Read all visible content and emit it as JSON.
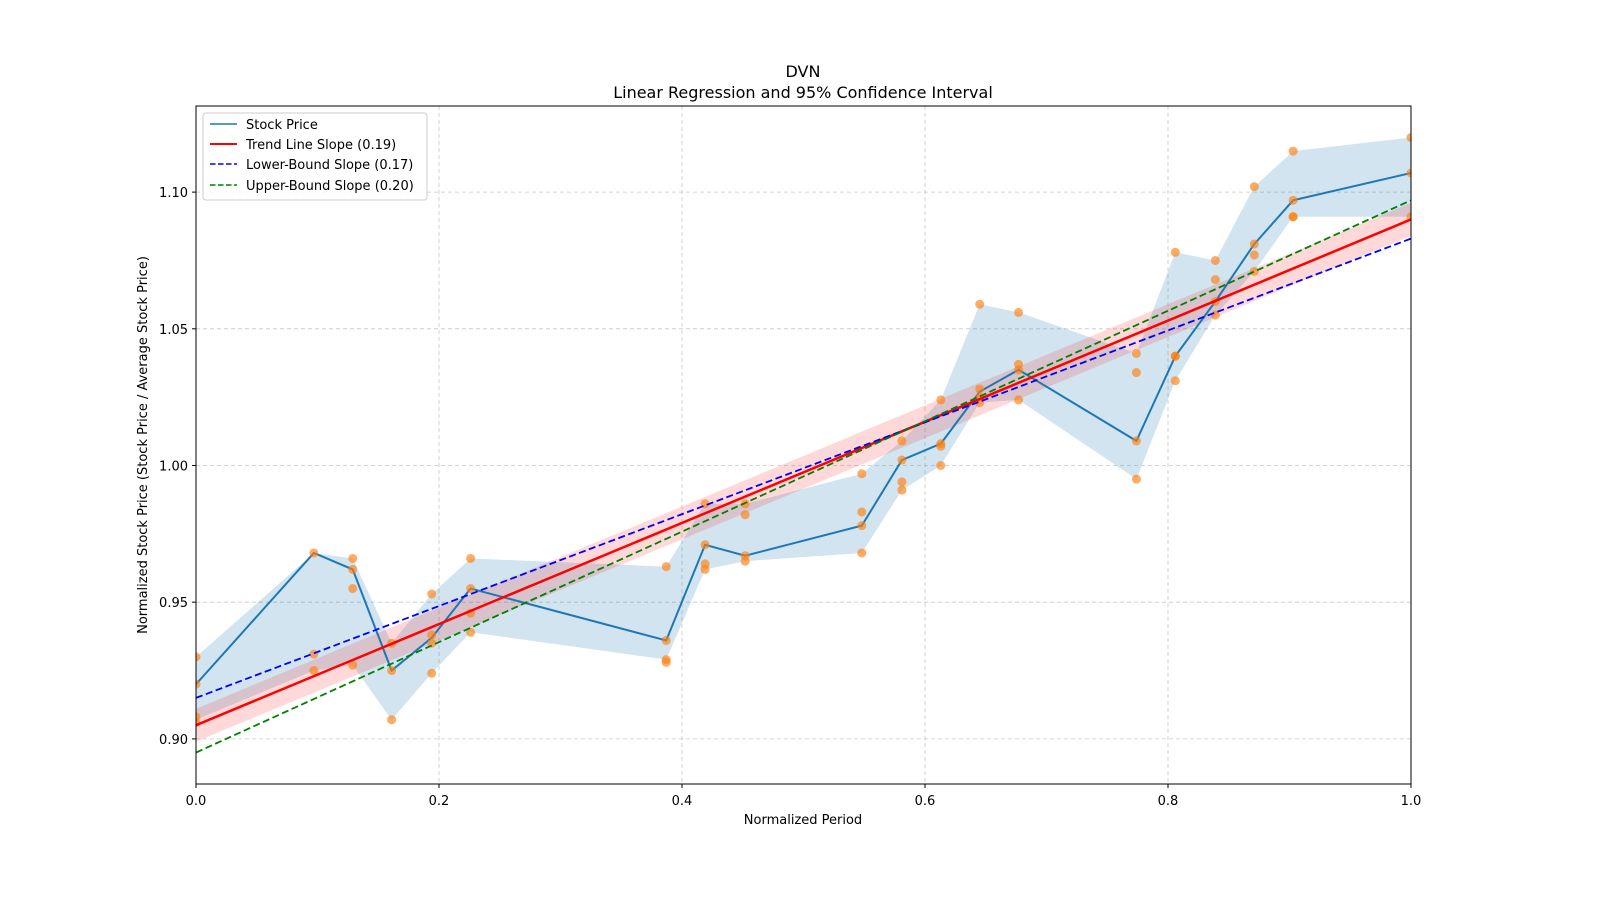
{
  "chart_data": {
    "type": "line",
    "title": "DVN",
    "subtitle": "Linear Regression and 95% Confidence Interval",
    "xlabel": "Normalized Period",
    "ylabel": "Normalized Stock Price (Stock Price / Average Stock Price)",
    "xlim": [
      0.0,
      1.0
    ],
    "ylim": [
      0.8835,
      1.1315
    ],
    "grid": true,
    "legend_position": "top-left",
    "x_ticks": [
      0.0,
      0.2,
      0.4,
      0.6,
      0.8,
      1.0
    ],
    "x_tick_labels": [
      "0.0",
      "0.2",
      "0.4",
      "0.6",
      "0.8",
      "1.0"
    ],
    "y_ticks": [
      0.9,
      0.95,
      1.0,
      1.05,
      1.1
    ],
    "y_tick_labels": [
      "0.90",
      "0.95",
      "1.00",
      "1.05",
      "1.10"
    ],
    "legend": [
      {
        "label": "Stock Price",
        "color": "#1f77b4",
        "style": "solid"
      },
      {
        "label": "Trend Line Slope (0.19)",
        "color": "#ff0000",
        "style": "solid"
      },
      {
        "label": "Lower-Bound Slope (0.17)",
        "color": "#0000ff",
        "style": "dashed"
      },
      {
        "label": "Upper-Bound Slope (0.20)",
        "color": "#008000",
        "style": "dashed"
      }
    ],
    "stock_price": {
      "x": [
        0.0,
        0.097,
        0.129,
        0.161,
        0.194,
        0.226,
        0.387,
        0.419,
        0.452,
        0.548,
        0.581,
        0.613,
        0.645,
        0.677,
        0.774,
        0.806,
        0.839,
        0.871,
        0.903,
        1.0
      ],
      "y": [
        0.92,
        0.968,
        0.962,
        0.925,
        0.937,
        0.955,
        0.936,
        0.971,
        0.967,
        0.978,
        1.002,
        1.008,
        1.027,
        1.035,
        1.009,
        1.04,
        1.06,
        1.081,
        1.097,
        1.107
      ],
      "band_low": [
        0.907,
        0.925,
        0.927,
        0.907,
        0.924,
        0.939,
        0.929,
        0.962,
        0.965,
        0.968,
        0.991,
        1.0,
        1.023,
        1.024,
        0.995,
        1.031,
        1.055,
        1.071,
        1.091,
        1.091
      ],
      "band_high": [
        0.93,
        0.968,
        0.966,
        0.935,
        0.953,
        0.966,
        0.963,
        0.986,
        0.986,
        0.997,
        1.009,
        1.024,
        1.059,
        1.056,
        1.041,
        1.078,
        1.075,
        1.102,
        1.115,
        1.12
      ]
    },
    "scatter": {
      "color": "#ff7f0e",
      "points": [
        [
          0.0,
          0.93
        ],
        [
          0.0,
          0.92
        ],
        [
          0.0,
          0.908
        ],
        [
          0.0,
          0.906
        ],
        [
          0.097,
          0.968
        ],
        [
          0.097,
          0.931
        ],
        [
          0.097,
          0.925
        ],
        [
          0.129,
          0.966
        ],
        [
          0.129,
          0.962
        ],
        [
          0.129,
          0.955
        ],
        [
          0.129,
          0.927
        ],
        [
          0.161,
          0.935
        ],
        [
          0.161,
          0.925
        ],
        [
          0.161,
          0.907
        ],
        [
          0.194,
          0.953
        ],
        [
          0.194,
          0.938
        ],
        [
          0.194,
          0.935
        ],
        [
          0.194,
          0.924
        ],
        [
          0.226,
          0.966
        ],
        [
          0.226,
          0.955
        ],
        [
          0.226,
          0.946
        ],
        [
          0.226,
          0.939
        ],
        [
          0.387,
          0.963
        ],
        [
          0.387,
          0.936
        ],
        [
          0.387,
          0.929
        ],
        [
          0.387,
          0.928
        ],
        [
          0.419,
          0.986
        ],
        [
          0.419,
          0.971
        ],
        [
          0.419,
          0.964
        ],
        [
          0.419,
          0.962
        ],
        [
          0.452,
          0.986
        ],
        [
          0.452,
          0.982
        ],
        [
          0.452,
          0.967
        ],
        [
          0.452,
          0.965
        ],
        [
          0.548,
          0.997
        ],
        [
          0.548,
          0.983
        ],
        [
          0.548,
          0.978
        ],
        [
          0.548,
          0.968
        ],
        [
          0.581,
          1.009
        ],
        [
          0.581,
          1.002
        ],
        [
          0.581,
          0.994
        ],
        [
          0.581,
          0.991
        ],
        [
          0.613,
          1.024
        ],
        [
          0.613,
          1.008
        ],
        [
          0.613,
          1.007
        ],
        [
          0.613,
          1.0
        ],
        [
          0.645,
          1.059
        ],
        [
          0.645,
          1.028
        ],
        [
          0.645,
          1.025
        ],
        [
          0.645,
          1.023
        ],
        [
          0.677,
          1.056
        ],
        [
          0.677,
          1.037
        ],
        [
          0.677,
          1.035
        ],
        [
          0.677,
          1.024
        ],
        [
          0.774,
          1.041
        ],
        [
          0.774,
          1.034
        ],
        [
          0.774,
          1.009
        ],
        [
          0.774,
          0.995
        ],
        [
          0.806,
          1.078
        ],
        [
          0.806,
          1.04
        ],
        [
          0.806,
          1.04
        ],
        [
          0.806,
          1.031
        ],
        [
          0.839,
          1.075
        ],
        [
          0.839,
          1.068
        ],
        [
          0.839,
          1.06
        ],
        [
          0.839,
          1.055
        ],
        [
          0.871,
          1.102
        ],
        [
          0.871,
          1.081
        ],
        [
          0.871,
          1.077
        ],
        [
          0.871,
          1.071
        ],
        [
          0.903,
          1.115
        ],
        [
          0.903,
          1.097
        ],
        [
          0.903,
          1.091
        ],
        [
          0.903,
          1.091
        ],
        [
          1.0,
          1.12
        ],
        [
          1.0,
          1.107
        ],
        [
          1.0,
          1.091
        ]
      ]
    },
    "trend_line": {
      "x": [
        0.0,
        1.0
      ],
      "y": [
        0.905,
        1.09
      ],
      "ci_halfwidth": 0.006,
      "color": "#ff0000"
    },
    "lower_bound_line": {
      "x": [
        0.0,
        1.0
      ],
      "y": [
        0.915,
        1.083
      ],
      "color": "#0000ff"
    },
    "upper_bound_line": {
      "x": [
        0.0,
        1.0
      ],
      "y": [
        0.895,
        1.097
      ],
      "color": "#008000"
    }
  }
}
